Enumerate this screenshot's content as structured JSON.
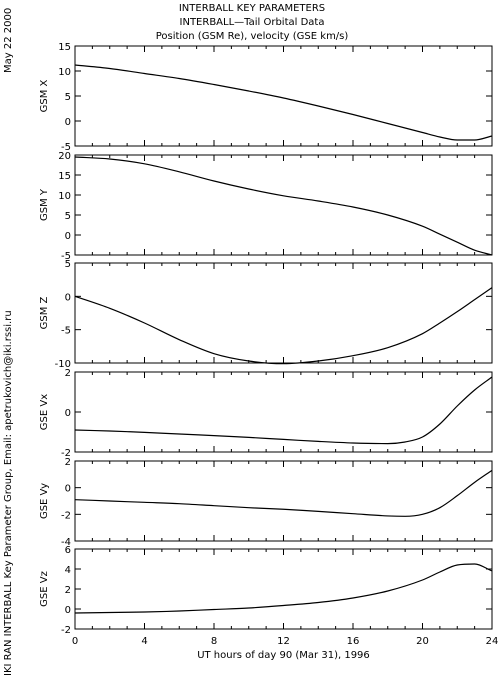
{
  "titles": [
    "INTERBALL KEY PARAMETERS",
    "INTERBALL—Tail Orbital Data",
    "Position (GSM Re), velocity (GSE km/s)"
  ],
  "side_date": "May 22 2000",
  "side_credit": "IKI RAN INTERBALL Key Parameter Group, Email: apetrukovich@iki.rssi.ru",
  "chart_data": {
    "type": "line",
    "xlabel": "UT hours of day  90 (Mar 31), 1996",
    "x_ticks": [
      0,
      4,
      8,
      12,
      16,
      20,
      24
    ],
    "xlim": [
      0,
      24
    ],
    "colors": {
      "line": "#000000",
      "axes": "#000000",
      "background": "#ffffff"
    },
    "panels": [
      {
        "ylabel": "GSM X",
        "ylim": [
          -5,
          15
        ],
        "y_ticks": [
          -5,
          0,
          5,
          10,
          15
        ],
        "x": [
          0,
          2,
          4,
          6,
          8,
          10,
          12,
          14,
          16,
          18,
          20,
          21,
          22,
          23,
          24
        ],
        "y": [
          11.2,
          10.5,
          9.5,
          8.5,
          7.3,
          6.0,
          4.6,
          3.0,
          1.3,
          -0.5,
          -2.3,
          -3.2,
          -3.8,
          -3.8,
          -3.0
        ]
      },
      {
        "ylabel": "GSM Y",
        "ylim": [
          -5,
          20
        ],
        "y_ticks": [
          -5,
          0,
          5,
          10,
          15,
          20
        ],
        "x": [
          0,
          2,
          4,
          6,
          8,
          10,
          12,
          14,
          16,
          18,
          20,
          21,
          22,
          23,
          24
        ],
        "y": [
          19.5,
          19.0,
          17.8,
          15.8,
          13.5,
          11.5,
          9.8,
          8.5,
          7.0,
          5.0,
          2.2,
          0.2,
          -1.8,
          -3.8,
          -5.0
        ]
      },
      {
        "ylabel": "GSM Z",
        "ylim": [
          -10,
          5
        ],
        "y_ticks": [
          -10,
          -5,
          0,
          5
        ],
        "x": [
          0,
          2,
          4,
          6,
          8,
          10,
          12,
          14,
          16,
          18,
          20,
          21,
          22,
          23,
          24
        ],
        "y": [
          0.0,
          -1.8,
          -4.0,
          -6.5,
          -8.6,
          -9.7,
          -10.1,
          -9.7,
          -8.9,
          -7.7,
          -5.6,
          -4.0,
          -2.3,
          -0.5,
          1.3
        ]
      },
      {
        "ylabel": "GSE Vx",
        "ylim": [
          -2,
          2
        ],
        "y_ticks": [
          -2,
          0,
          2
        ],
        "x": [
          0,
          2,
          4,
          6,
          8,
          10,
          12,
          14,
          16,
          18,
          19,
          20,
          21,
          22,
          23,
          24
        ],
        "y": [
          -0.9,
          -0.95,
          -1.02,
          -1.1,
          -1.18,
          -1.27,
          -1.37,
          -1.47,
          -1.55,
          -1.58,
          -1.5,
          -1.25,
          -0.6,
          0.3,
          1.1,
          1.75
        ]
      },
      {
        "ylabel": "GSE Vy",
        "ylim": [
          -4,
          2
        ],
        "y_ticks": [
          -4,
          -2,
          0,
          2
        ],
        "x": [
          0,
          2,
          4,
          6,
          8,
          10,
          12,
          14,
          16,
          18,
          19,
          20,
          21,
          22,
          23,
          24
        ],
        "y": [
          -0.9,
          -1.0,
          -1.1,
          -1.2,
          -1.35,
          -1.5,
          -1.62,
          -1.78,
          -1.95,
          -2.12,
          -2.15,
          -2.0,
          -1.5,
          -0.6,
          0.4,
          1.3
        ]
      },
      {
        "ylabel": "GSE Vz",
        "ylim": [
          -2,
          6
        ],
        "y_ticks": [
          -2,
          0,
          2,
          4,
          6
        ],
        "x": [
          0,
          2,
          4,
          6,
          8,
          10,
          12,
          14,
          16,
          18,
          20,
          21,
          22,
          23,
          24
        ],
        "y": [
          -0.4,
          -0.35,
          -0.3,
          -0.2,
          -0.05,
          0.1,
          0.35,
          0.65,
          1.1,
          1.8,
          2.9,
          3.7,
          4.4,
          4.5,
          3.8
        ]
      }
    ]
  }
}
